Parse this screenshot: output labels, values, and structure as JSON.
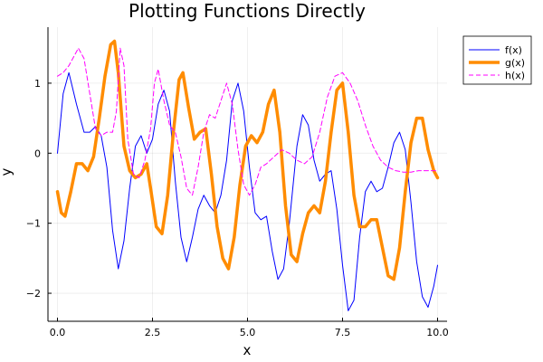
{
  "chart_data": {
    "type": "line",
    "title": "Plotting Functions Directly",
    "xlabel": "x",
    "ylabel": "y",
    "xlim": [
      -0.25,
      10.25
    ],
    "ylim": [
      -2.4,
      1.8
    ],
    "xticks": [
      0,
      2.5,
      5,
      7.5,
      10
    ],
    "xtick_labels": [
      "0.0",
      "2.5",
      "5.0",
      "7.5",
      "10.0"
    ],
    "yticks": [
      -2,
      -1,
      0,
      1
    ],
    "ytick_labels": [
      "−2",
      "−1",
      "0",
      "1"
    ],
    "grid": true,
    "legend_position": "top-right",
    "series": [
      {
        "name": "f(x)",
        "color": "#0000ff",
        "style": "solid",
        "x": [
          0.0,
          0.15,
          0.3,
          0.5,
          0.7,
          0.85,
          1.0,
          1.15,
          1.3,
          1.45,
          1.6,
          1.75,
          1.9,
          2.05,
          2.2,
          2.35,
          2.5,
          2.65,
          2.8,
          2.95,
          3.1,
          3.25,
          3.4,
          3.55,
          3.7,
          3.85,
          4.0,
          4.15,
          4.3,
          4.45,
          4.6,
          4.75,
          4.9,
          5.05,
          5.2,
          5.35,
          5.5,
          5.65,
          5.8,
          5.95,
          6.1,
          6.3,
          6.45,
          6.6,
          6.75,
          6.9,
          7.05,
          7.2,
          7.35,
          7.5,
          7.65,
          7.8,
          7.95,
          8.1,
          8.25,
          8.4,
          8.55,
          8.7,
          8.85,
          9.0,
          9.15,
          9.3,
          9.45,
          9.6,
          9.75,
          9.9,
          10.0
        ],
        "values": [
          0.0,
          0.85,
          1.15,
          0.7,
          0.3,
          0.3,
          0.38,
          0.25,
          -0.2,
          -1.1,
          -1.65,
          -1.25,
          -0.5,
          0.1,
          0.25,
          0.0,
          0.2,
          0.7,
          0.9,
          0.6,
          -0.4,
          -1.2,
          -1.55,
          -1.2,
          -0.8,
          -0.6,
          -0.75,
          -0.85,
          -0.6,
          -0.1,
          0.75,
          1.0,
          0.6,
          -0.2,
          -0.85,
          -0.95,
          -0.9,
          -1.4,
          -1.8,
          -1.65,
          -1.0,
          0.1,
          0.55,
          0.4,
          -0.1,
          -0.4,
          -0.3,
          -0.25,
          -0.8,
          -1.6,
          -2.25,
          -2.1,
          -1.2,
          -0.55,
          -0.4,
          -0.55,
          -0.5,
          -0.2,
          0.15,
          0.3,
          0.05,
          -0.7,
          -1.55,
          -2.05,
          -2.2,
          -1.9,
          -1.6
        ]
      },
      {
        "name": "g(x)",
        "color": "#ff8c00",
        "style": "thick",
        "x": [
          0.0,
          0.1,
          0.2,
          0.35,
          0.5,
          0.65,
          0.8,
          0.95,
          1.1,
          1.25,
          1.4,
          1.5,
          1.6,
          1.75,
          1.9,
          2.05,
          2.2,
          2.35,
          2.45,
          2.6,
          2.75,
          2.9,
          3.05,
          3.2,
          3.3,
          3.45,
          3.6,
          3.75,
          3.9,
          4.05,
          4.2,
          4.35,
          4.5,
          4.65,
          4.8,
          4.95,
          5.1,
          5.25,
          5.4,
          5.55,
          5.7,
          5.85,
          6.0,
          6.15,
          6.3,
          6.45,
          6.6,
          6.75,
          6.9,
          7.05,
          7.2,
          7.35,
          7.5,
          7.65,
          7.8,
          7.95,
          8.1,
          8.25,
          8.4,
          8.55,
          8.7,
          8.85,
          9.0,
          9.15,
          9.3,
          9.45,
          9.6,
          9.75,
          9.9,
          10.0
        ],
        "values": [
          -0.55,
          -0.85,
          -0.9,
          -0.55,
          -0.15,
          -0.15,
          -0.25,
          -0.05,
          0.5,
          1.1,
          1.55,
          1.6,
          1.15,
          0.1,
          -0.25,
          -0.35,
          -0.3,
          -0.15,
          -0.5,
          -1.05,
          -1.15,
          -0.6,
          0.3,
          1.05,
          1.15,
          0.65,
          0.2,
          0.3,
          0.35,
          -0.3,
          -1.05,
          -1.5,
          -1.65,
          -1.2,
          -0.45,
          0.1,
          0.25,
          0.15,
          0.3,
          0.7,
          0.9,
          0.3,
          -0.75,
          -1.45,
          -1.55,
          -1.15,
          -0.85,
          -0.75,
          -0.85,
          -0.4,
          0.3,
          0.9,
          1.0,
          0.3,
          -0.6,
          -1.05,
          -1.05,
          -0.95,
          -0.95,
          -1.35,
          -1.75,
          -1.8,
          -1.35,
          -0.55,
          0.15,
          0.5,
          0.5,
          0.05,
          -0.25,
          -0.35
        ]
      },
      {
        "name": "h(x)",
        "color": "#ff00ff",
        "style": "dashed",
        "x": [
          0.0,
          0.15,
          0.3,
          0.45,
          0.55,
          0.7,
          0.85,
          1.0,
          1.15,
          1.3,
          1.45,
          1.55,
          1.65,
          1.75,
          1.85,
          2.0,
          2.15,
          2.3,
          2.45,
          2.55,
          2.65,
          2.8,
          2.95,
          3.1,
          3.25,
          3.4,
          3.55,
          3.7,
          3.85,
          4.0,
          4.15,
          4.3,
          4.45,
          4.6,
          4.75,
          4.9,
          5.05,
          5.2,
          5.35,
          5.5,
          5.7,
          5.9,
          6.1,
          6.3,
          6.5,
          6.7,
          6.9,
          7.1,
          7.3,
          7.5,
          7.7,
          7.9,
          8.1,
          8.3,
          8.5,
          8.7,
          8.9,
          9.1,
          9.3,
          9.5,
          9.7,
          9.9,
          10.0
        ],
        "values": [
          1.1,
          1.15,
          1.25,
          1.4,
          1.5,
          1.35,
          0.85,
          0.35,
          0.25,
          0.3,
          0.3,
          0.6,
          1.5,
          1.25,
          0.2,
          -0.3,
          -0.35,
          -0.1,
          0.35,
          1.0,
          1.2,
          0.75,
          0.4,
          0.3,
          -0.05,
          -0.5,
          -0.6,
          -0.2,
          0.3,
          0.55,
          0.5,
          0.75,
          1.0,
          0.7,
          0.05,
          -0.45,
          -0.6,
          -0.45,
          -0.2,
          -0.15,
          -0.05,
          0.05,
          0.0,
          -0.1,
          -0.15,
          -0.05,
          0.3,
          0.8,
          1.1,
          1.15,
          1.0,
          0.75,
          0.4,
          0.1,
          -0.1,
          -0.2,
          -0.25,
          -0.27,
          -0.27,
          -0.25,
          -0.25,
          -0.25,
          -0.25
        ]
      }
    ]
  }
}
